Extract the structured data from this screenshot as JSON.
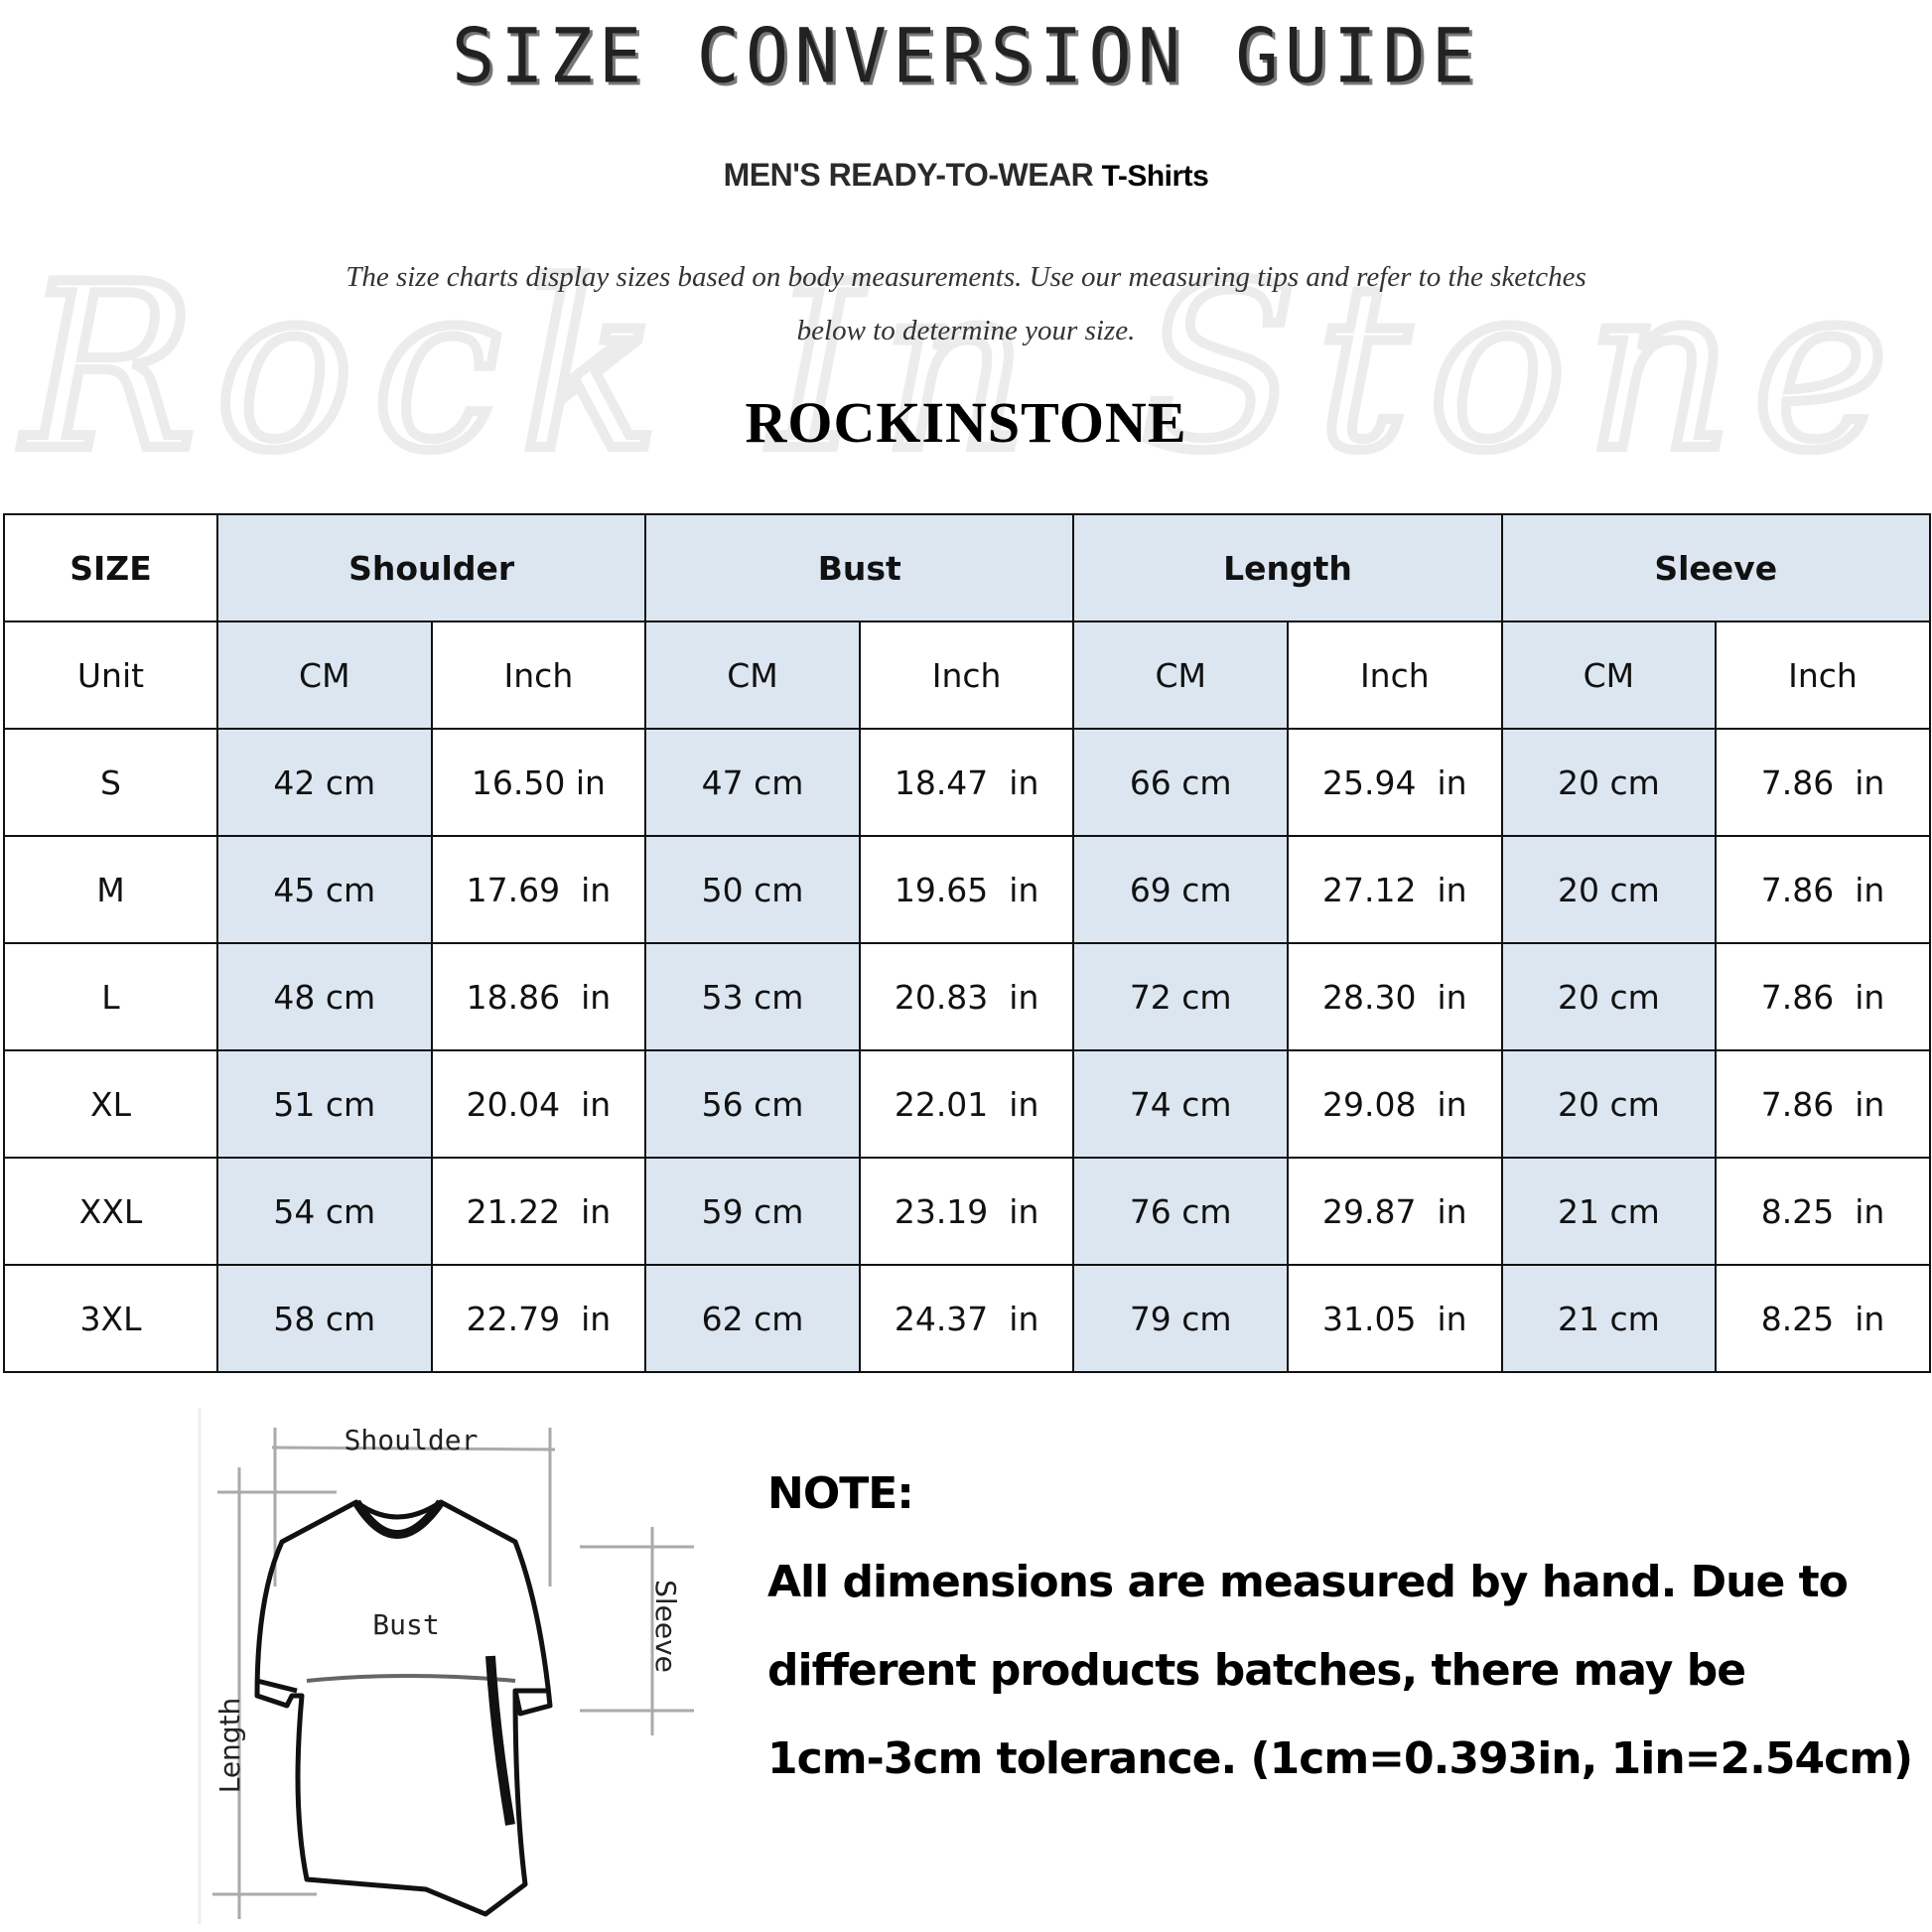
{
  "header": {
    "title": "SIZE CONVERSION GUIDE",
    "subtitle_main": "MEN'S READY-TO-WEAR",
    "subtitle_product": "T-Shirts",
    "intro_line1": "The size charts display sizes based on body measurements. Use our measuring tips and refer to the sketches",
    "intro_line2": "below to determine your size.",
    "brand": "ROCKINSTONE",
    "watermark": "Rock In Stone"
  },
  "colors": {
    "header_fill": "#dce6f1",
    "border": "#111111"
  },
  "table": {
    "corner_label": "SIZE",
    "unit_label": "Unit",
    "groups": [
      "Shoulder",
      "Bust",
      "Length",
      "Sleeve"
    ],
    "units": [
      "CM",
      "Inch"
    ],
    "rows": [
      {
        "size": "S",
        "values": [
          "42 cm",
          "16.50 in",
          "47 cm",
          "18.47  in",
          "66 cm",
          "25.94  in",
          "20 cm",
          "7.86  in"
        ]
      },
      {
        "size": "M",
        "values": [
          "45 cm",
          "17.69  in",
          "50 cm",
          "19.65  in",
          "69 cm",
          "27.12  in",
          "20 cm",
          "7.86  in"
        ]
      },
      {
        "size": "L",
        "values": [
          "48 cm",
          "18.86  in",
          "53 cm",
          "20.83  in",
          "72 cm",
          "28.30  in",
          "20 cm",
          "7.86  in"
        ]
      },
      {
        "size": "XL",
        "values": [
          "51 cm",
          "20.04  in",
          "56 cm",
          "22.01  in",
          "74 cm",
          "29.08  in",
          "20 cm",
          "7.86  in"
        ]
      },
      {
        "size": "XXL",
        "values": [
          "54 cm",
          "21.22  in",
          "59 cm",
          "23.19  in",
          "76 cm",
          "29.87  in",
          "21 cm",
          "8.25  in"
        ]
      },
      {
        "size": "3XL",
        "values": [
          "58 cm",
          "22.79  in",
          "62 cm",
          "24.37  in",
          "79 cm",
          "31.05  in",
          "21 cm",
          "8.25  in"
        ]
      }
    ]
  },
  "diagram": {
    "shoulder": "Shoulder",
    "bust": "Bust",
    "length": "Length",
    "sleeve": "Sleeve"
  },
  "note": {
    "heading": "NOTE:",
    "lines": [
      "All dimensions are measured by hand. Due to",
      "different products batches, there may be",
      "1cm-3cm tolerance. (1cm=0.393in, 1in=2.54cm)"
    ]
  }
}
